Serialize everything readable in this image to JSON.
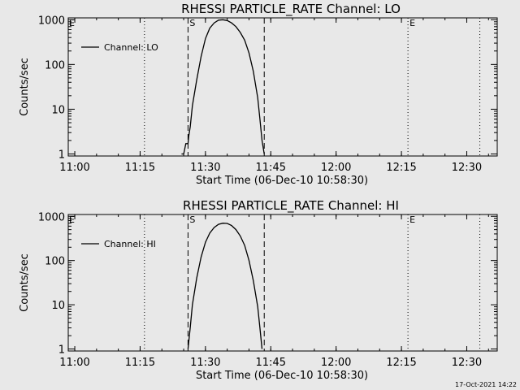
{
  "footer": {
    "date": "17-Oct-2021 14:22"
  },
  "chart_data": [
    {
      "type": "line",
      "title": "RHESSI PARTICLE_RATE Channel: LO",
      "xlabel": "Start Time (06-Dec-10 10:58:30)",
      "ylabel": "Counts/sec",
      "y_scale": "log",
      "ylim": [
        0.9,
        1100
      ],
      "xlim": [
        "10:58:30",
        "12:37:00"
      ],
      "x_ticks": [
        "11:00",
        "11:15",
        "11:30",
        "11:45",
        "12:00",
        "12:15",
        "12:30"
      ],
      "y_ticks": [
        "1",
        "10",
        "100",
        "1000"
      ],
      "legend": {
        "position": "top-left"
      },
      "series": [
        {
          "name": "Channel: LO",
          "x": [
            "11:24:30",
            "11:25:00",
            "11:25:30",
            "11:26:00",
            "11:26:10",
            "11:26:30",
            "11:27:00",
            "11:28:00",
            "11:29:00",
            "11:30:00",
            "11:31:00",
            "11:32:00",
            "11:33:00",
            "11:34:00",
            "11:35:00",
            "11:36:00",
            "11:37:00",
            "11:38:00",
            "11:39:00",
            "11:40:00",
            "11:41:00",
            "11:42:00",
            "11:42:30",
            "11:43:00",
            "11:43:30"
          ],
          "y": [
            1,
            1,
            1.7,
            1.7,
            2.5,
            4,
            12,
            45,
            150,
            380,
            650,
            850,
            980,
            1000,
            960,
            850,
            700,
            520,
            350,
            180,
            70,
            18,
            6,
            2,
            1
          ]
        }
      ],
      "markers": [
        {
          "label": "S",
          "time": "11:26:00",
          "style": "dashed"
        },
        {
          "label": "",
          "time": "11:43:30",
          "style": "dashed"
        },
        {
          "label": "",
          "time": "11:16:00",
          "style": "dotted"
        },
        {
          "label": "E",
          "time": "12:16:30",
          "style": "dotted"
        },
        {
          "label": "",
          "time": "12:33:00",
          "style": "dotted"
        }
      ],
      "marker_top_left": "E"
    },
    {
      "type": "line",
      "title": "RHESSI PARTICLE_RATE Channel: HI",
      "xlabel": "Start Time (06-Dec-10 10:58:30)",
      "ylabel": "Counts/sec",
      "y_scale": "log",
      "ylim": [
        0.9,
        1100
      ],
      "xlim": [
        "10:58:30",
        "12:37:00"
      ],
      "x_ticks": [
        "11:00",
        "11:15",
        "11:30",
        "11:45",
        "12:00",
        "12:15",
        "12:30"
      ],
      "y_ticks": [
        "1",
        "10",
        "100",
        "1000"
      ],
      "legend": {
        "position": "top-left"
      },
      "series": [
        {
          "name": "Channel: HI",
          "x": [
            "11:26:00",
            "11:26:30",
            "11:27:00",
            "11:28:00",
            "11:29:00",
            "11:30:00",
            "11:31:00",
            "11:32:00",
            "11:33:00",
            "11:34:00",
            "11:35:00",
            "11:36:00",
            "11:37:00",
            "11:38:00",
            "11:39:00",
            "11:40:00",
            "11:41:00",
            "11:42:00",
            "11:42:30",
            "11:43:00"
          ],
          "y": [
            1,
            3,
            10,
            40,
            120,
            260,
            420,
            560,
            660,
            700,
            690,
            620,
            500,
            360,
            220,
            100,
            35,
            9,
            3,
            1
          ]
        }
      ],
      "markers": [
        {
          "label": "S",
          "time": "11:26:00",
          "style": "dashed"
        },
        {
          "label": "",
          "time": "11:43:30",
          "style": "dashed"
        },
        {
          "label": "",
          "time": "11:16:00",
          "style": "dotted"
        },
        {
          "label": "E",
          "time": "12:16:30",
          "style": "dotted"
        },
        {
          "label": "",
          "time": "12:33:00",
          "style": "dotted"
        }
      ],
      "marker_top_left": "E"
    }
  ]
}
